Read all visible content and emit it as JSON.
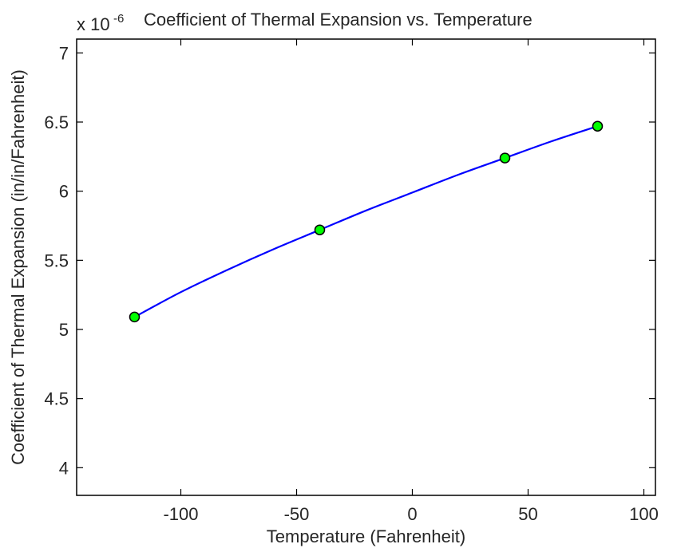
{
  "chart_data": {
    "type": "line",
    "title": "Coefficient of Thermal Expansion vs. Temperature",
    "xlabel": "Temperature (Fahrenheit)",
    "ylabel": "Coefficient of Thermal Expansion (in/in/Fahrenheit)",
    "y_multiplier": {
      "base": "x 10",
      "exponent": "-6"
    },
    "xlim": [
      -145,
      105
    ],
    "ylim": [
      3.8,
      7.1
    ],
    "x_ticks": [
      -100,
      -50,
      0,
      50,
      100
    ],
    "y_ticks": [
      4,
      4.5,
      5,
      5.5,
      6,
      6.5,
      7
    ],
    "x_tick_labels": [
      "-100",
      "-50",
      "0",
      "50",
      "100"
    ],
    "y_tick_labels": [
      "4",
      "4.5",
      "5",
      "5.5",
      "6",
      "6.5",
      "7"
    ],
    "grid": false,
    "series": [
      {
        "style": "curve",
        "color": "#0000ff",
        "x": [
          -120,
          -100,
          -80,
          -60,
          -40,
          -20,
          0,
          20,
          40,
          60,
          80
        ],
        "y": [
          5.09,
          5.27,
          5.43,
          5.58,
          5.72,
          5.86,
          5.99,
          6.12,
          6.24,
          6.36,
          6.47
        ]
      },
      {
        "style": "markers",
        "marker_color": "#00ff00",
        "edge_color": "#000000",
        "x": [
          -120,
          -40,
          40,
          80
        ],
        "y": [
          5.09,
          5.72,
          6.24,
          6.47
        ]
      }
    ]
  }
}
